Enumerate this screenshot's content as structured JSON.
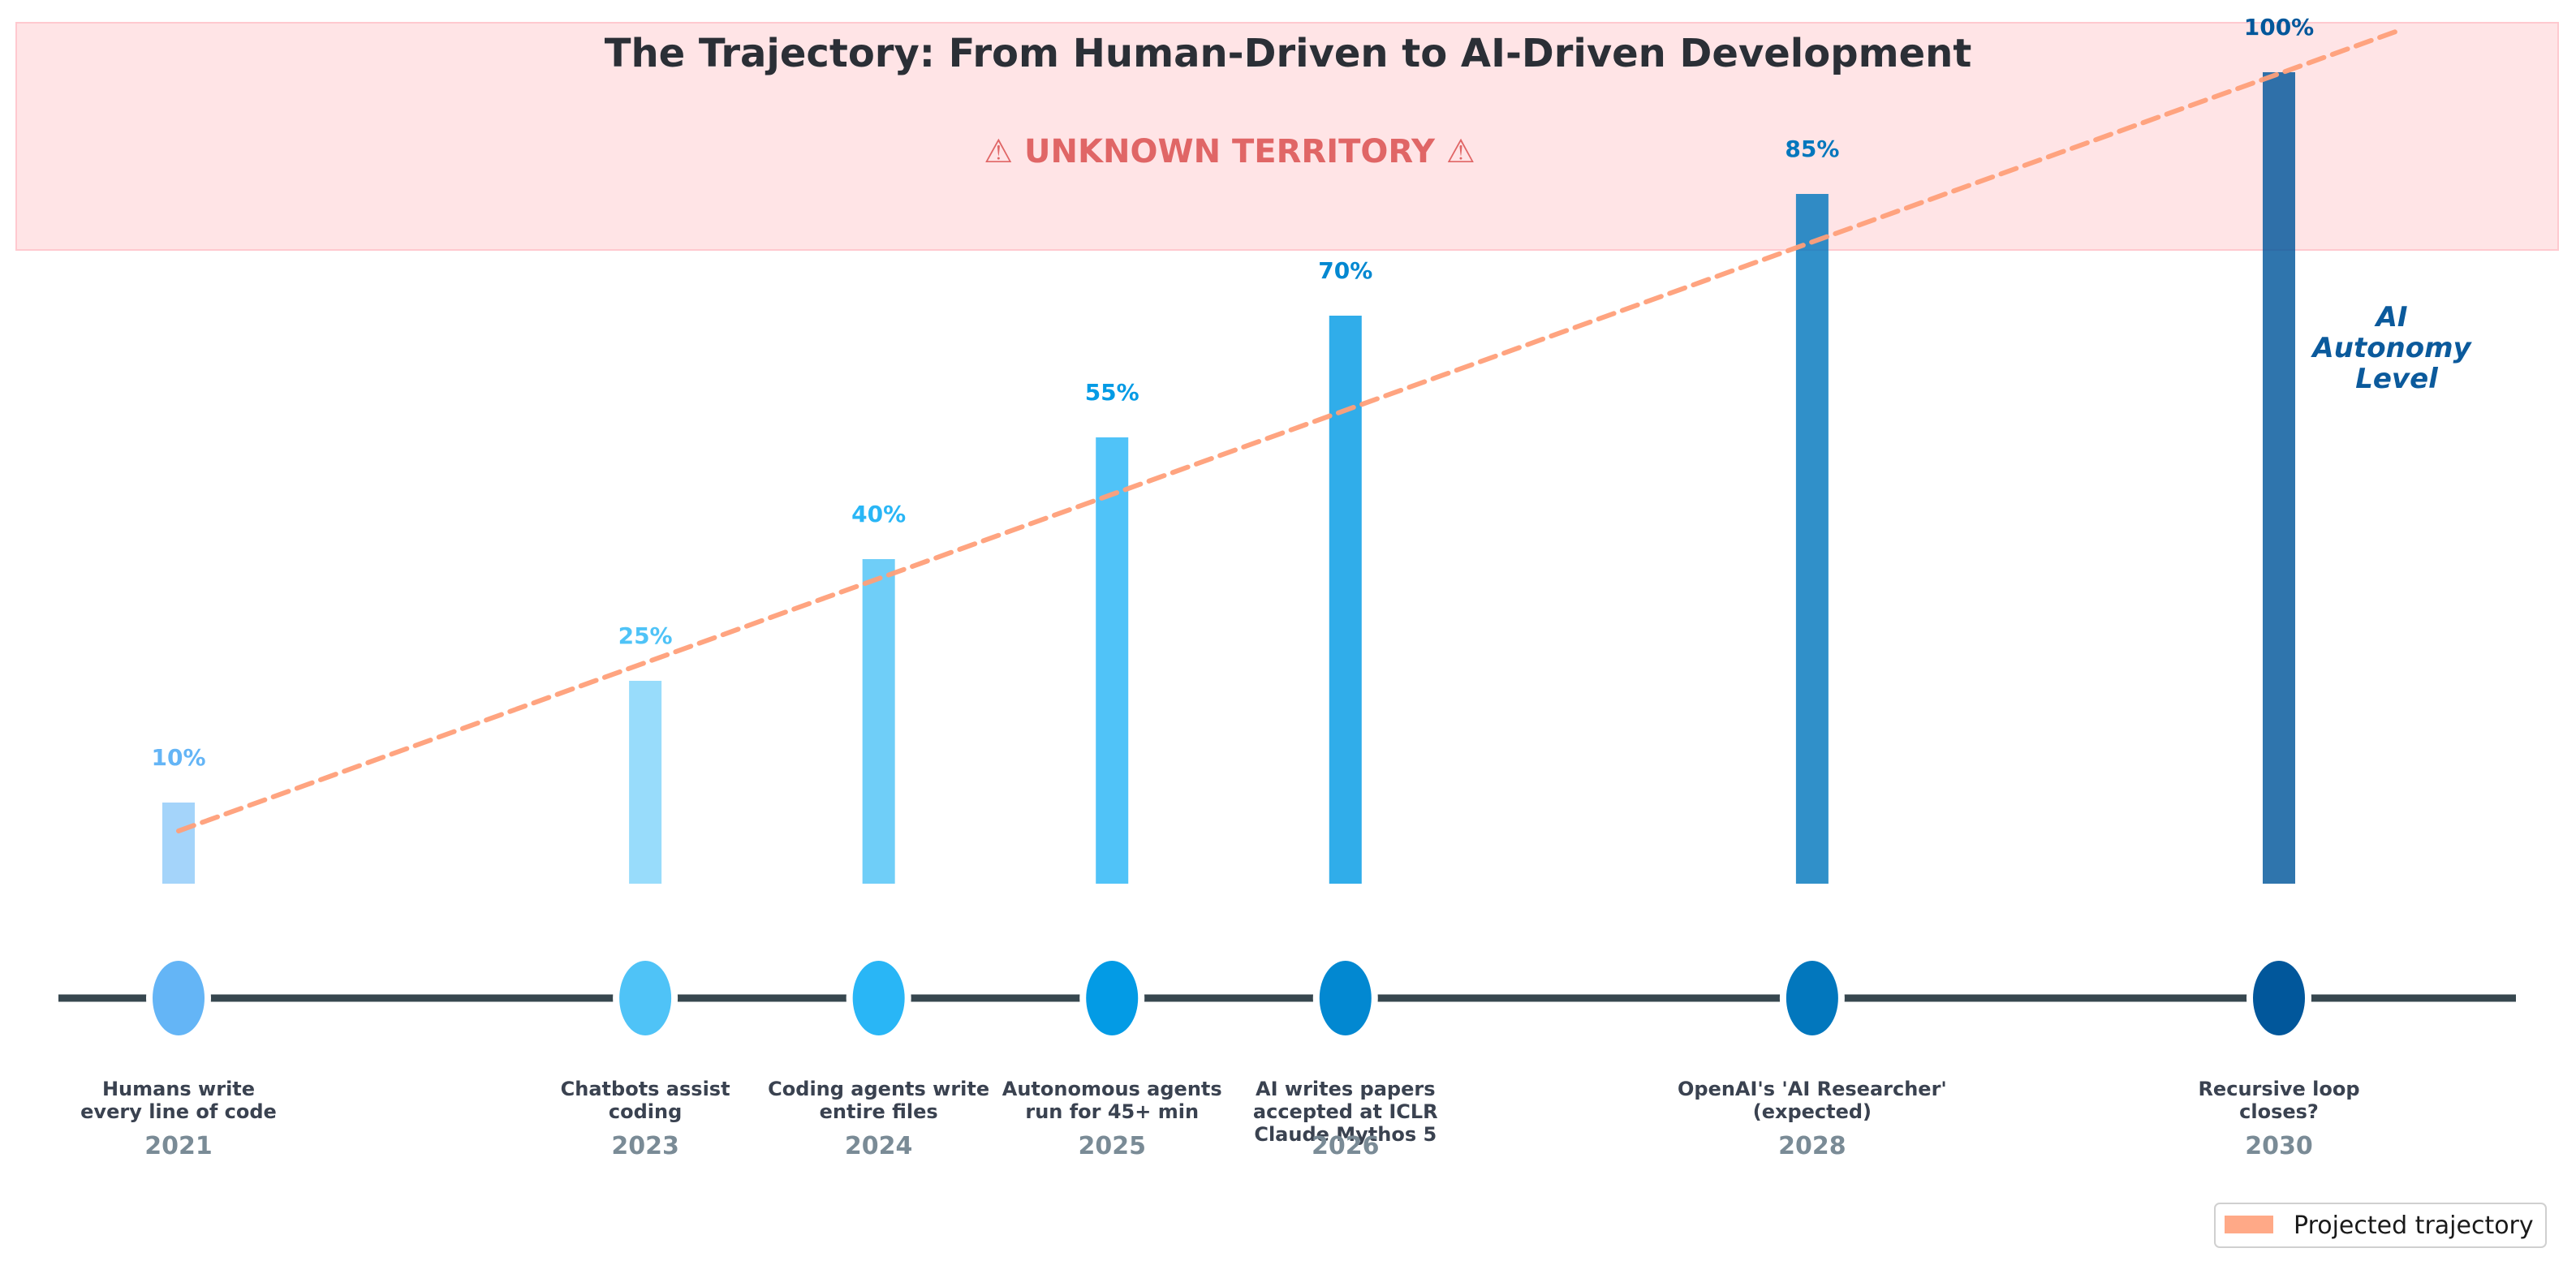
{
  "chart_data": {
    "type": "bar",
    "title": "The Trajectory: From Human-Driven to AI-Driven Development",
    "zone_label": "⚠  UNKNOWN TERRITORY  ⚠",
    "side_label": [
      "AI",
      "Autonomy",
      "Level"
    ],
    "x": [
      2021,
      2023,
      2024,
      2025,
      2026,
      2028,
      2030
    ],
    "categories": [
      "2021",
      "2023",
      "2024",
      "2025",
      "2026",
      "2028",
      "2030"
    ],
    "values": [
      10,
      25,
      40,
      55,
      70,
      85,
      100
    ],
    "value_labels": [
      "10%",
      "25%",
      "40%",
      "55%",
      "70%",
      "85%",
      "100%"
    ],
    "events": [
      [
        "Humans write",
        "every line of code"
      ],
      [
        "Chatbots assist",
        "coding"
      ],
      [
        "Coding agents write",
        "entire files"
      ],
      [
        "Autonomous agents",
        "run for 45+ min"
      ],
      [
        "AI writes papers",
        "accepted at ICLR",
        "Claude Mythos 5"
      ],
      [
        "OpenAI's 'AI Researcher'",
        "(expected)"
      ],
      [
        "Recursive loop",
        "closes?"
      ]
    ],
    "trajectory": {
      "name": "Projected trajectory",
      "x": [
        2021,
        2030.5
      ],
      "values": [
        6.5,
        105
      ]
    },
    "ylim": [
      0,
      105
    ],
    "legend": {
      "position": "bottom-right",
      "entries": [
        "Projected trajectory"
      ]
    },
    "colors": {
      "bars": [
        "#90caf9",
        "#81d4fa",
        "#4fc3f7",
        "#29b6f6",
        "#039be5",
        "#0277bd",
        "#01579b"
      ],
      "markers": [
        "#64b5f6",
        "#4fc3f7",
        "#29b6f6",
        "#039be5",
        "#0288d1",
        "#0277bd",
        "#01579b"
      ],
      "pct_labels": [
        "#64b5f6",
        "#4fc3f7",
        "#29b6f6",
        "#039be5",
        "#0288d1",
        "#0277bd",
        "#01579b"
      ],
      "trajectory": "#ffa07a",
      "zone_fill": "#ffe4e6",
      "timeline": "#37474f"
    }
  }
}
